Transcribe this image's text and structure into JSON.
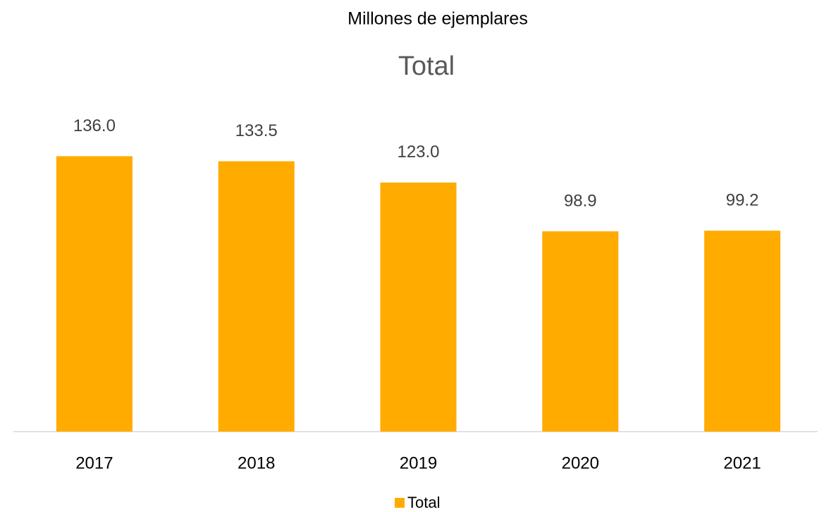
{
  "chart_data": {
    "type": "bar",
    "subtitle": "Millones de ejemplares",
    "title": "Total",
    "categories": [
      "2017",
      "2018",
      "2019",
      "2020",
      "2021"
    ],
    "series": [
      {
        "name": "Total",
        "color": "#ffab00",
        "values": [
          136,
          133.5,
          123,
          98.9,
          99.2
        ],
        "value_labels": [
          "136.0",
          "133.5",
          "123.0",
          "98.9",
          "99.2"
        ]
      }
    ],
    "ylim": [
      0,
      140
    ],
    "legend": "bottom"
  }
}
